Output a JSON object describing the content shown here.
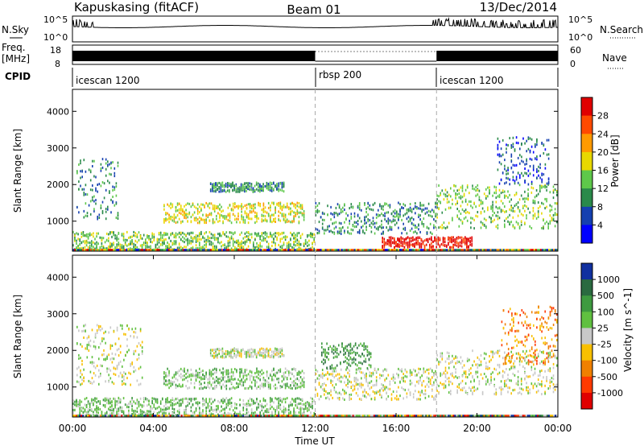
{
  "header": {
    "radar": "Kapuskasing (fitACF)",
    "beam": "Beam 01",
    "date": "13/Dec/2014"
  },
  "noise_panel": {
    "left_label": "N.Sky",
    "left_tick_top": "10^5",
    "left_tick_bottom": "10^0",
    "right_label": "N.Search",
    "right_tick_top": "10^5",
    "right_tick_bottom": "10^0"
  },
  "freq_panel": {
    "left_label_line1": "Freq.",
    "left_label_line2": "[MHz]",
    "left_tick_top": "18",
    "left_tick_bottom": "8",
    "right_label": "Nave",
    "right_tick_top": "60",
    "right_tick_bottom": "0"
  },
  "cpid_panel": {
    "label": "CPID",
    "segments": [
      {
        "name": "icescan 1200",
        "start_hour": 0
      },
      {
        "name": "rbsp 200",
        "start_hour": 12
      },
      {
        "name": "icescan 1200",
        "start_hour": 18
      }
    ]
  },
  "chart_data": [
    {
      "type": "heatmap",
      "name": "power",
      "ylabel": "Slant Range [km]",
      "ylim": [
        180,
        4600
      ],
      "yticks": [
        1000,
        2000,
        3000,
        4000
      ],
      "xlim_hours": [
        0,
        24
      ],
      "colorbar_label": "Power [dB]",
      "colorbar_ticks": [
        "28",
        "24",
        "20",
        "16",
        "12",
        "8",
        "4"
      ],
      "colorbar_colors": [
        "#e00000",
        "#ff4a00",
        "#ff9a00",
        "#e8d800",
        "#5ec84a",
        "#2a8a4a",
        "#1540b0",
        "#0000ff"
      ],
      "regions": [
        {
          "t0": 0.2,
          "t1": 2.3,
          "r0": 1050,
          "r1": 2700,
          "level": 5
        },
        {
          "t0": 4.5,
          "t1": 11.5,
          "r0": 950,
          "r1": 1500,
          "level": 3
        },
        {
          "t0": 6.8,
          "t1": 10.5,
          "r0": 1800,
          "r1": 2050,
          "level": 5
        },
        {
          "t0": 0.0,
          "t1": 12.0,
          "r0": 200,
          "r1": 700,
          "level": 4
        },
        {
          "t0": 12.0,
          "t1": 18.0,
          "r0": 650,
          "r1": 1500,
          "level": 5
        },
        {
          "t0": 15.3,
          "t1": 19.8,
          "r0": 280,
          "r1": 560,
          "level": 0
        },
        {
          "t0": 18.0,
          "t1": 24.0,
          "r0": 800,
          "r1": 2000,
          "level": 4
        },
        {
          "t0": 21.0,
          "t1": 23.6,
          "r0": 2000,
          "r1": 3300,
          "level": 6
        }
      ]
    },
    {
      "type": "heatmap",
      "name": "velocity",
      "xlabel": "Time UT",
      "ylabel": "Slant Range [km]",
      "ylim": [
        180,
        4600
      ],
      "yticks": [
        1000,
        2000,
        3000,
        4000
      ],
      "xlim_hours": [
        0,
        24
      ],
      "xticks": [
        "00:00",
        "04:00",
        "08:00",
        "12:00",
        "16:00",
        "20:00",
        "00:00"
      ],
      "colorbar_label": "Velocity [m s^-1]",
      "colorbar_ticks": [
        "1000",
        "500",
        "100",
        "25",
        "-25",
        "-100",
        "-500",
        "-1000"
      ],
      "colorbar_colors": [
        "#1030a0",
        "#2a6a40",
        "#3e9a40",
        "#60c040",
        "#c8c8c8",
        "#f8c000",
        "#f08000",
        "#ff3a00",
        "#e00000"
      ],
      "regions": [
        {
          "t0": 0.2,
          "t1": 3.5,
          "r0": 1050,
          "r1": 2700,
          "level": 4
        },
        {
          "t0": 4.5,
          "t1": 11.5,
          "r0": 950,
          "r1": 1500,
          "level": 3
        },
        {
          "t0": 6.8,
          "t1": 10.5,
          "r0": 1800,
          "r1": 2050,
          "level": 4
        },
        {
          "t0": 0.0,
          "t1": 12.0,
          "r0": 200,
          "r1": 700,
          "level": 3
        },
        {
          "t0": 12.0,
          "t1": 18.0,
          "r0": 650,
          "r1": 1500,
          "level": 4
        },
        {
          "t0": 12.3,
          "t1": 14.8,
          "r0": 1500,
          "r1": 2200,
          "level": 2
        },
        {
          "t0": 18.0,
          "t1": 24.0,
          "r0": 800,
          "r1": 2000,
          "level": 4
        },
        {
          "t0": 21.2,
          "t1": 24.0,
          "r0": 1600,
          "r1": 3200,
          "level": 6
        }
      ]
    }
  ]
}
